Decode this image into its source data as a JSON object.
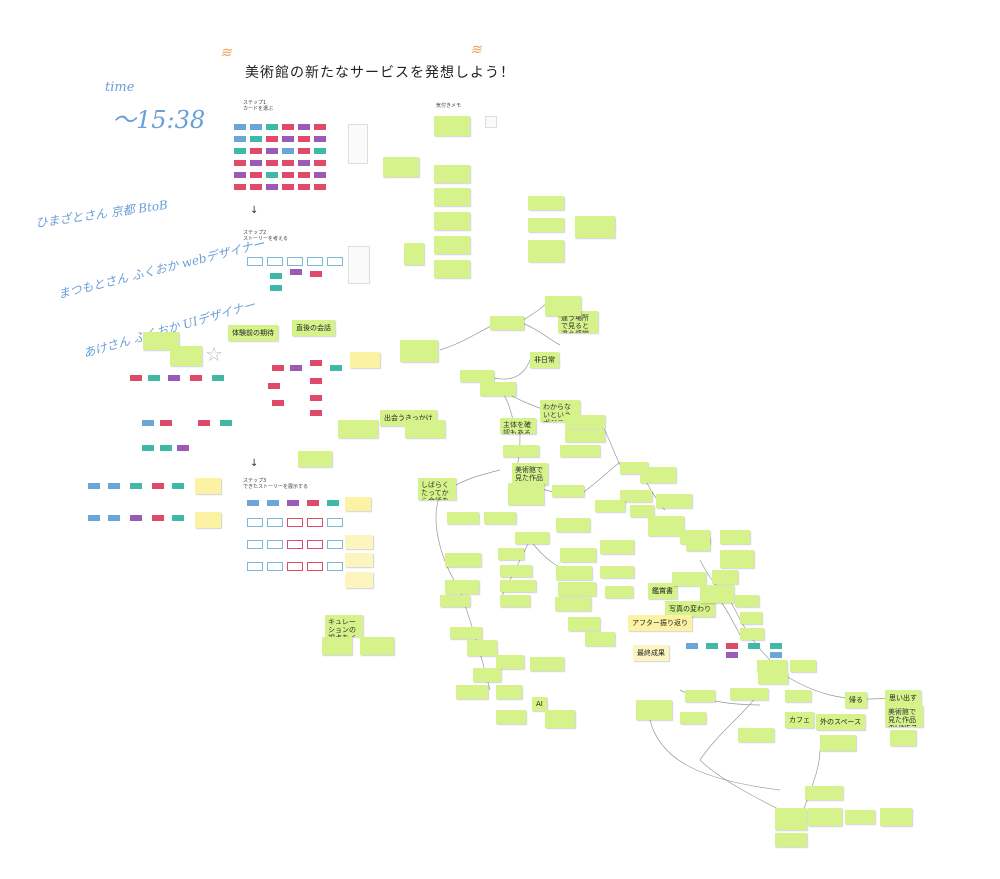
{
  "board": {
    "title": "美術館の新たなサービスを発想しよう！",
    "notes": {
      "time_label": "time",
      "time_value": "〜15:38",
      "member_1": "ひまざとさん 京都 BtoB",
      "member_2": "まつもとさん ふくおか webデザイナー",
      "member_3": "あけさん ふくおか UIデザイナー"
    },
    "section_labels": {
      "step1": "ステップ1\nカードを選ぶ",
      "step2": "ステップ2\nストーリーを考える",
      "step3": "ステップ3\nできたストーリーを展示する",
      "parking": "気付きメモ"
    },
    "topics": {
      "before_visit": "体験前の期待",
      "after_conversation": "直後の会話",
      "trigger": "出会うきっかけ",
      "extraordinary": "非日常",
      "final": "最終成果",
      "impression": "鑑賞書",
      "photo": "写真の変わり",
      "after_review": "アフター振り返り",
      "go_home": "帰る",
      "recall": "思い出す",
      "cafe": "カフェ",
      "outside_space": "外のスペース",
      "ai": "AI",
      "curation": "キュレーションの視点をインプットしたい",
      "museum_service": "美術館で見た作品のLINEスタンプで会話",
      "when": "しばらくたってから会話をするためのきっかけ",
      "different": "違う場所で見ると違う感覚であるという発見",
      "share": "わからないというポジティブな感覚を共有するという",
      "mind": "主体を確認もある"
    }
  }
}
